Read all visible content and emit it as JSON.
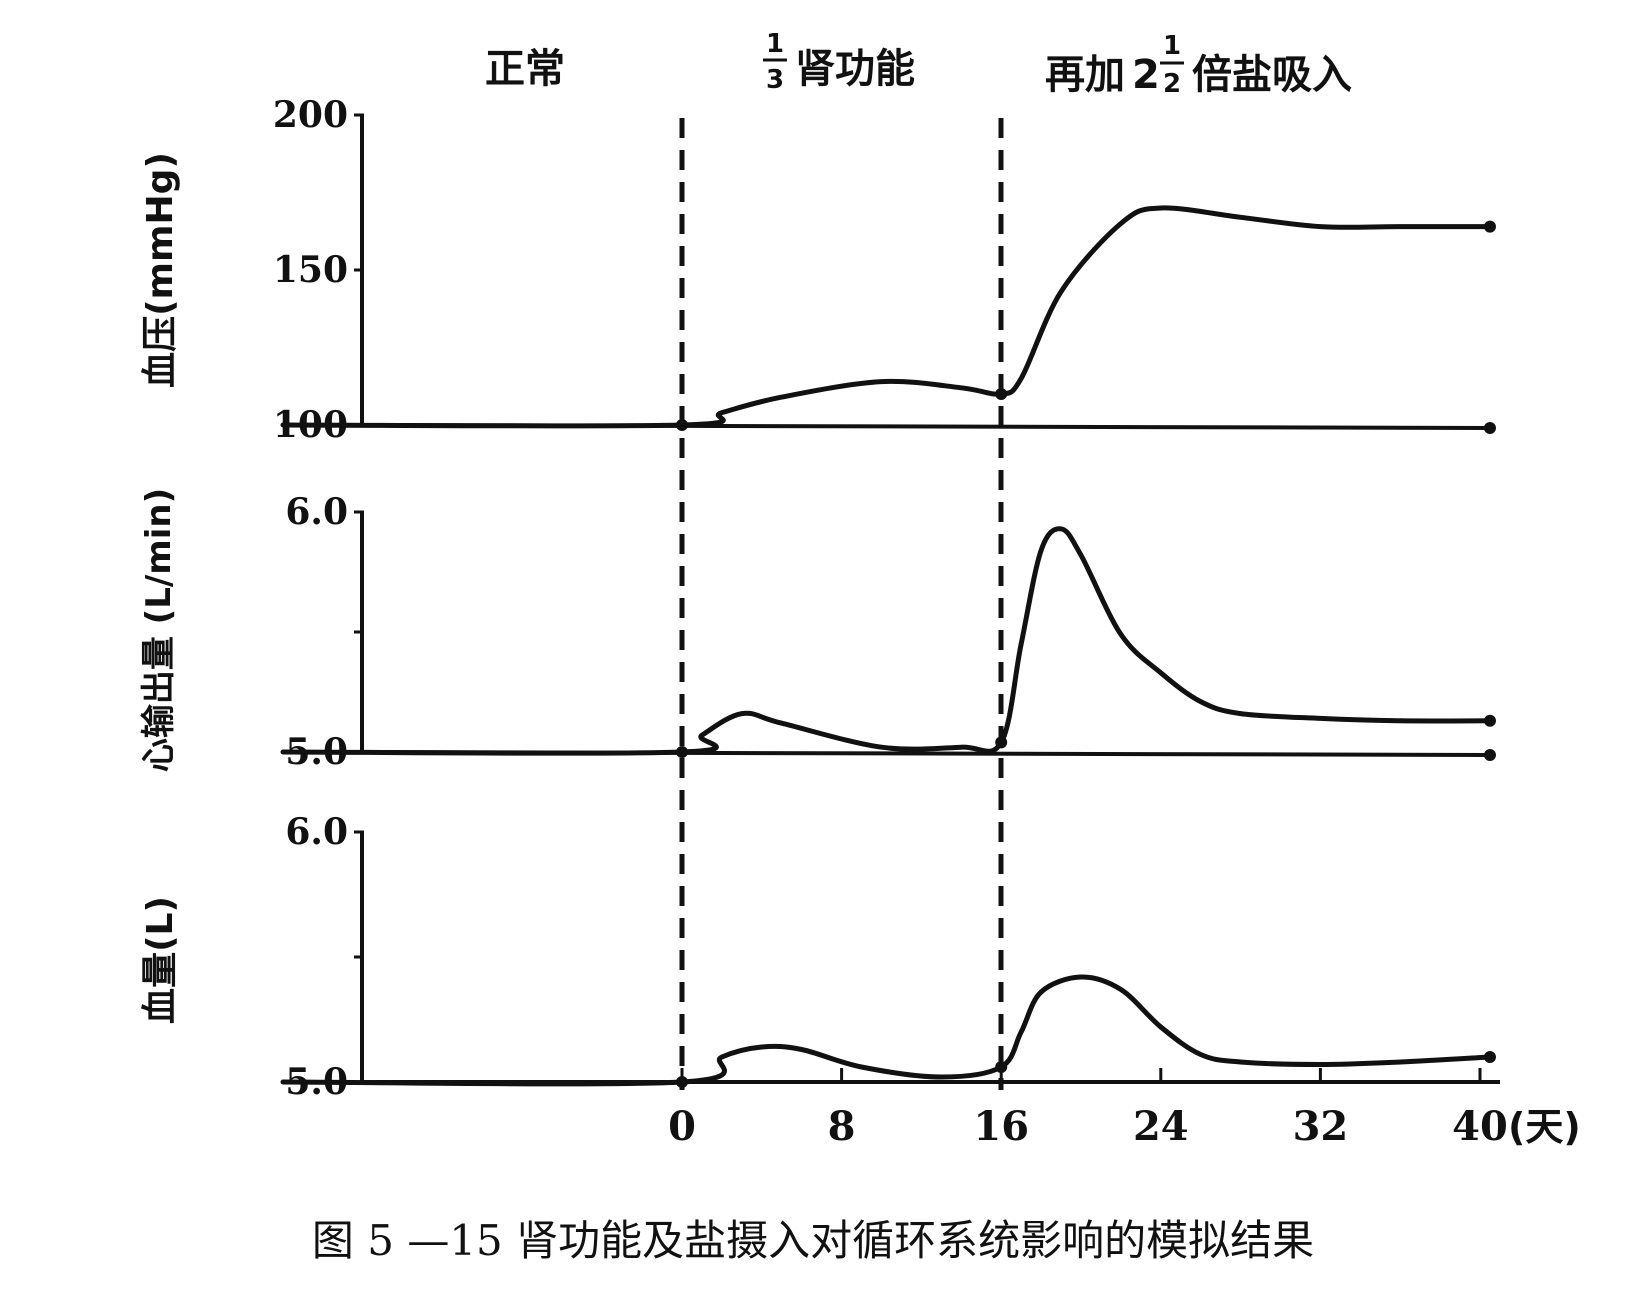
{
  "figure": {
    "caption": "图 5 —15  肾功能及盐摄入对循环系统影响的模拟结果"
  },
  "phases": {
    "normal": "正常",
    "kidney_num": "1",
    "kidney_den": "3",
    "kidney_text": "肾功能",
    "salt_prefix": "再加",
    "salt_whole": "2",
    "salt_num": "1",
    "salt_den": "2",
    "salt_text": "倍盐吸入"
  },
  "chart_data": [
    {
      "type": "line",
      "ylabel": "血压(mmHg)",
      "ylim": [
        100,
        200
      ],
      "yticks": [
        "100",
        "150",
        "200"
      ],
      "xlim": [
        -20,
        41
      ],
      "baseline": 100,
      "series": [
        {
          "x": [
            -20,
            0,
            2,
            5,
            10,
            14,
            16,
            17,
            19,
            22,
            24,
            28,
            32,
            36,
            40.5
          ],
          "y": [
            100,
            100,
            104,
            109,
            114,
            112,
            110,
            115,
            143,
            165,
            170,
            167,
            164,
            164,
            164
          ]
        }
      ]
    },
    {
      "type": "line",
      "ylabel": "心输出量 (L/min)",
      "ylim": [
        5.0,
        6.0
      ],
      "yticks": [
        "5.0",
        "6.0"
      ],
      "xlim": [
        -20,
        41
      ],
      "baseline": 5.0,
      "series": [
        {
          "x": [
            -20,
            0,
            1,
            3,
            5,
            10,
            14,
            16,
            17,
            18,
            19,
            20,
            22,
            24,
            26,
            28,
            32,
            36,
            40.5
          ],
          "y": [
            5.0,
            5.0,
            5.07,
            5.16,
            5.12,
            5.02,
            5.02,
            5.04,
            5.45,
            5.84,
            5.93,
            5.82,
            5.49,
            5.33,
            5.21,
            5.16,
            5.14,
            5.13,
            5.13
          ]
        }
      ]
    },
    {
      "type": "line",
      "ylabel": "血量(L)",
      "ylim": [
        5.0,
        6.0
      ],
      "yticks": [
        "5.0",
        "6.0"
      ],
      "xlim": [
        -20,
        41
      ],
      "xticks": [
        "0",
        "8",
        "16",
        "24",
        "32",
        "40"
      ],
      "xunit": "(天)",
      "series": [
        {
          "x": [
            -20,
            0,
            2,
            4,
            6,
            9,
            13,
            16,
            17,
            18,
            20,
            22,
            24,
            26,
            28,
            32,
            36,
            40.5
          ],
          "y": [
            5.0,
            5.0,
            5.1,
            5.14,
            5.13,
            5.06,
            5.02,
            5.06,
            5.2,
            5.36,
            5.42,
            5.37,
            5.22,
            5.11,
            5.08,
            5.07,
            5.08,
            5.1
          ]
        }
      ]
    }
  ]
}
